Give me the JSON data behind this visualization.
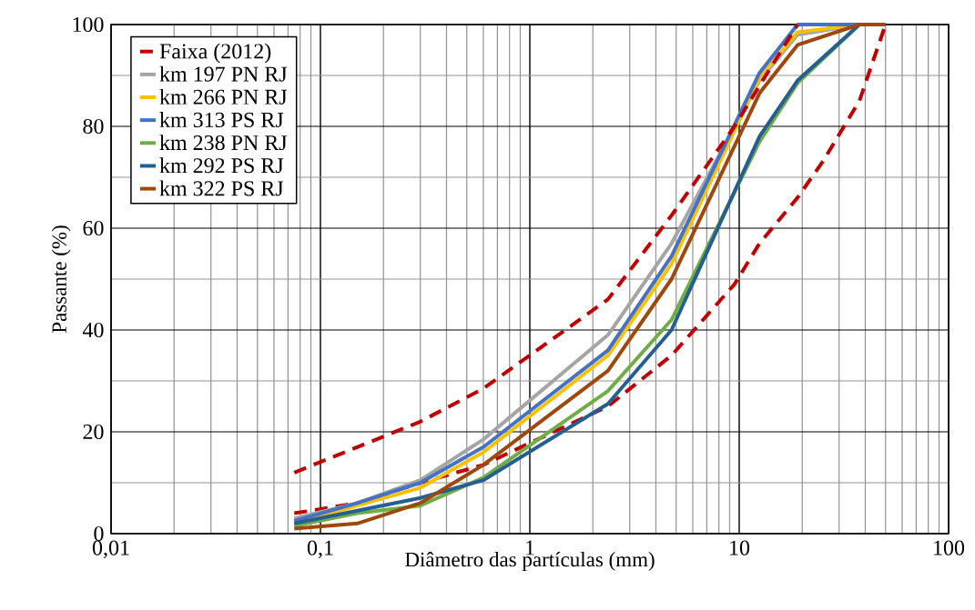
{
  "chart_data": {
    "type": "line",
    "xlabel": "Diâmetro das partículas (mm)",
    "ylabel": "Passante (%)",
    "log": "x",
    "xlim": [
      0.01,
      100
    ],
    "ylim": [
      0,
      100
    ],
    "xticks": [
      {
        "value": 0.01,
        "label": "0,01"
      },
      {
        "value": 0.1,
        "label": "0,1"
      },
      1,
      10,
      100
    ],
    "yticks": [
      0,
      20,
      40,
      60,
      80,
      100
    ],
    "grid": true,
    "legend": "top left",
    "marker": "none",
    "line_style": "solid",
    "series": [
      {
        "name": "Faixa (2012)",
        "color": "#c00000",
        "line_style": "dashed",
        "x": [
          0.075,
          0.15,
          0.3,
          0.6,
          2.36,
          4.75,
          9.5,
          12.5,
          19,
          25,
          37.5,
          50
        ],
        "values": [
          4,
          6,
          10,
          13.5,
          25,
          35,
          49,
          57,
          66,
          73,
          85,
          100
        ]
      },
      {
        "name": "km 197 PN RJ",
        "color": "#a5a5a5",
        "x": [
          0.075,
          0.15,
          0.3,
          0.6,
          2.36,
          4.75,
          12.5,
          19,
          37.5
        ],
        "values": [
          3,
          6,
          10.5,
          18.5,
          39,
          57,
          89,
          98,
          100
        ]
      },
      {
        "name": "km 266 PN RJ",
        "color": "#ffc000",
        "x": [
          0.075,
          0.15,
          0.3,
          0.6,
          2.36,
          4.75,
          12.5,
          19,
          37.5
        ],
        "values": [
          2,
          5.5,
          9,
          16,
          35,
          53,
          89.5,
          98.5,
          100
        ]
      },
      {
        "name": "km 313 PS RJ",
        "color": "#4472c4",
        "x": [
          0.075,
          0.15,
          0.3,
          0.6,
          2.36,
          4.75,
          12.5,
          19,
          37.5
        ],
        "values": [
          2.5,
          6,
          10,
          17,
          36,
          54.5,
          90.5,
          100,
          100
        ]
      },
      {
        "name": "km 238 PN RJ",
        "color": "#70ad47",
        "x": [
          0.075,
          0.15,
          0.3,
          0.6,
          2.36,
          4.75,
          12.5,
          19,
          37.5
        ],
        "values": [
          1.5,
          4,
          5.5,
          11,
          28,
          42,
          77,
          88.5,
          100
        ]
      },
      {
        "name": "km 292 PS RJ",
        "color": "#255e91",
        "x": [
          0.075,
          0.15,
          0.3,
          0.6,
          2.36,
          4.75,
          12.5,
          19,
          37.5
        ],
        "values": [
          2,
          4.5,
          7,
          10.5,
          25.5,
          40,
          78,
          89,
          100
        ]
      },
      {
        "name": "km 322 PS RJ",
        "color": "#9e480e",
        "x": [
          0.075,
          0.15,
          0.3,
          0.6,
          2.36,
          4.75,
          12.5,
          19,
          37.5,
          50
        ],
        "values": [
          1,
          2,
          6,
          13.5,
          32,
          50,
          86.5,
          96,
          100,
          100
        ]
      },
      {
        "color": "#c00000",
        "line_style": "dashed",
        "x": [
          0.075,
          0.15,
          0.3,
          0.6,
          2.36,
          4.75,
          9.5,
          12.5,
          19
        ],
        "values": [
          12,
          17,
          22,
          28.5,
          46,
          62.5,
          80,
          88,
          100
        ]
      }
    ]
  }
}
